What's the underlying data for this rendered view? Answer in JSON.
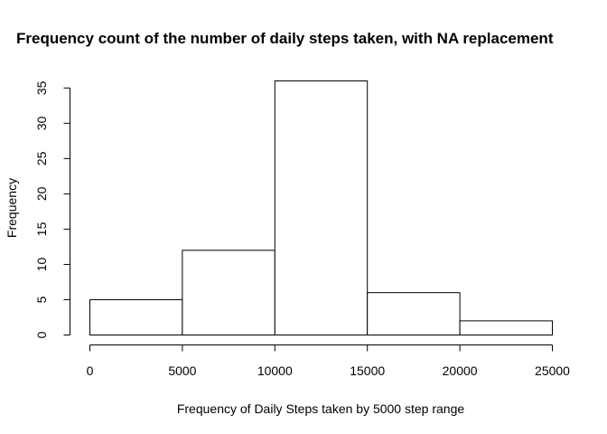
{
  "chart_data": {
    "type": "bar",
    "title": "Frequency count of the number of daily steps taken, with NA replacement",
    "xlabel": "Frequency of Daily Steps taken by 5000 step range",
    "ylabel": "Frequency",
    "bins": [
      {
        "from": 0,
        "to": 5000,
        "count": 5
      },
      {
        "from": 5000,
        "to": 10000,
        "count": 12
      },
      {
        "from": 10000,
        "to": 15000,
        "count": 36
      },
      {
        "from": 15000,
        "to": 20000,
        "count": 6
      },
      {
        "from": 20000,
        "to": 25000,
        "count": 2
      }
    ],
    "x_ticks": [
      0,
      5000,
      10000,
      15000,
      20000,
      25000
    ],
    "y_ticks": [
      0,
      5,
      10,
      15,
      20,
      25,
      30,
      35
    ],
    "xlim": [
      0,
      25000
    ],
    "ylim": [
      0,
      36
    ],
    "grid": false,
    "legend": "none"
  }
}
